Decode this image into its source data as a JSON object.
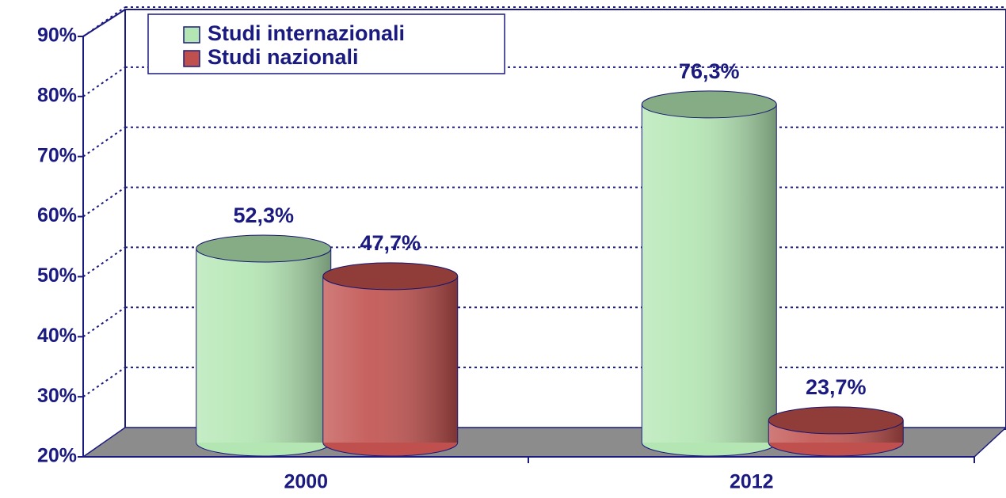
{
  "chart_data": {
    "type": "bar",
    "categories": [
      "2000",
      "2012"
    ],
    "series": [
      {
        "name": "Studi internazionali",
        "color": "#b3e6b3",
        "values": [
          52.3,
          76.3
        ],
        "value_labels": [
          "52,3%",
          "76,3%"
        ]
      },
      {
        "name": "Studi nazionali",
        "color": "#c0504d",
        "values": [
          47.7,
          23.7
        ],
        "value_labels": [
          "47,7%",
          "23,7%"
        ]
      }
    ],
    "ylim": [
      20,
      90
    ],
    "yticks": [
      {
        "value": 20,
        "label": "20%"
      },
      {
        "value": 30,
        "label": "30%"
      },
      {
        "value": 40,
        "label": "40%"
      },
      {
        "value": 50,
        "label": "50%"
      },
      {
        "value": 60,
        "label": "60%"
      },
      {
        "value": 70,
        "label": "70%"
      },
      {
        "value": 80,
        "label": "80%"
      },
      {
        "value": 90,
        "label": "90%"
      }
    ],
    "grid": true
  }
}
